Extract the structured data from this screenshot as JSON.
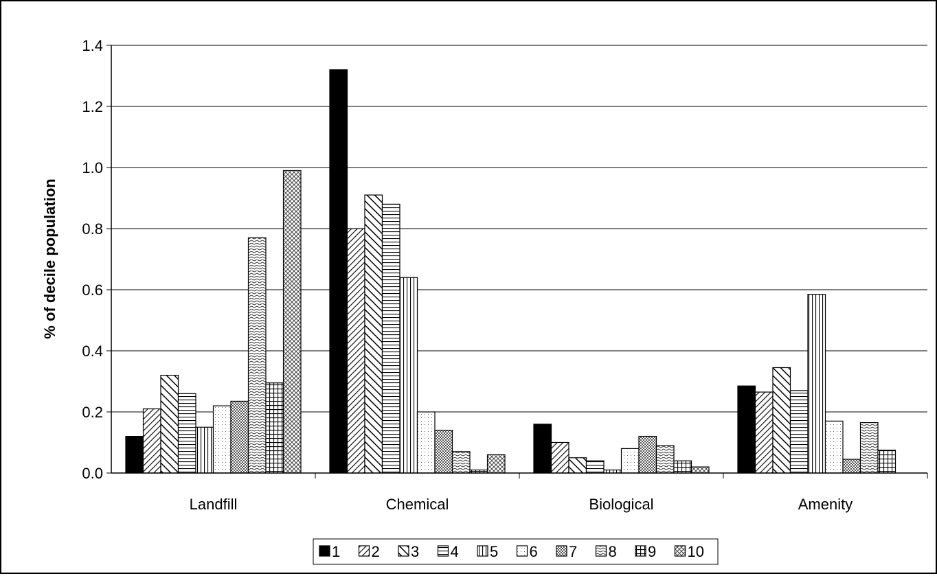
{
  "chart_data": {
    "type": "bar",
    "title": "",
    "xlabel": "",
    "ylabel": "% of decile population",
    "ylim": [
      0,
      1.4
    ],
    "yticks": [
      "0.0",
      "0.2",
      "0.4",
      "0.6",
      "0.8",
      "1.0",
      "1.2",
      "1.4"
    ],
    "grid": true,
    "legend": "bottom",
    "categories": [
      "Landfill",
      "Chemical",
      "Biological",
      "Amenity"
    ],
    "series": [
      {
        "name": "1",
        "pattern": "solid",
        "values": [
          0.12,
          1.32,
          0.16,
          0.285
        ]
      },
      {
        "name": "2",
        "pattern": "diagfine",
        "values": [
          0.21,
          0.8,
          0.1,
          0.265
        ]
      },
      {
        "name": "3",
        "pattern": "diagwide",
        "values": [
          0.32,
          0.91,
          0.05,
          0.345
        ]
      },
      {
        "name": "4",
        "pattern": "hlines",
        "values": [
          0.26,
          0.88,
          0.04,
          0.27
        ]
      },
      {
        "name": "5",
        "pattern": "vlines",
        "values": [
          0.15,
          0.64,
          0.01,
          0.585
        ]
      },
      {
        "name": "6",
        "pattern": "dots",
        "values": [
          0.22,
          0.2,
          0.08,
          0.17
        ]
      },
      {
        "name": "7",
        "pattern": "fine",
        "values": [
          0.235,
          0.14,
          0.12,
          0.045
        ]
      },
      {
        "name": "8",
        "pattern": "wave",
        "values": [
          0.77,
          0.07,
          0.09,
          0.165
        ]
      },
      {
        "name": "9",
        "pattern": "grid",
        "values": [
          0.295,
          0.01,
          0.04,
          0.075
        ]
      },
      {
        "name": "10",
        "pattern": "zigzag",
        "values": [
          0.99,
          0.06,
          0.02,
          0
        ]
      }
    ]
  }
}
